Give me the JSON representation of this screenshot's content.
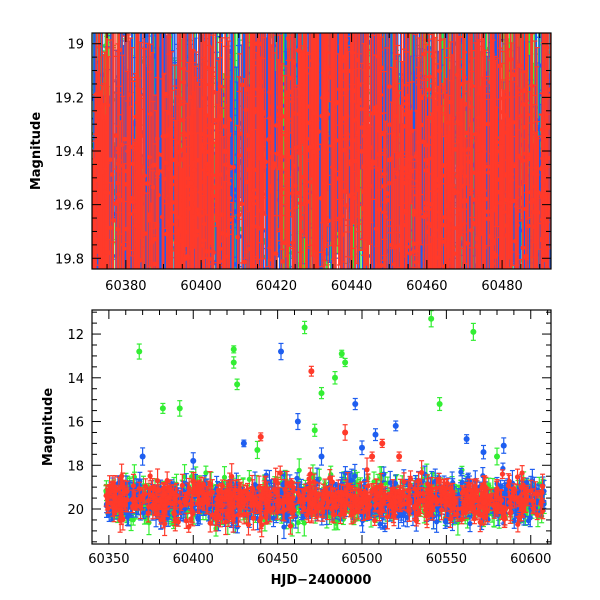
{
  "chart_data": [
    {
      "type": "scatter",
      "panel": "top",
      "xlabel": "",
      "ylabel": "Magnitude",
      "xlim": [
        60371,
        60493
      ],
      "ylim": [
        19.84,
        18.96
      ],
      "y_inverted": true,
      "x_tick_labels": [
        "60380",
        "60400",
        "60420",
        "60440",
        "60460",
        "60480"
      ],
      "y_tick_labels": [
        "19",
        "19.2",
        "19.4",
        "19.6",
        "19.8"
      ],
      "error_bars": true,
      "grid": false,
      "legend": "none",
      "series": [
        {
          "color": "#33ee33",
          "x": [
            60374,
            60381,
            60388,
            60394,
            60402,
            60408,
            60414,
            60421,
            60428,
            60436,
            60444,
            60452,
            60460,
            60468,
            60476,
            60484,
            60490
          ],
          "y": [
            19.45,
            19.6,
            19.55,
            19.5,
            19.65,
            19.55,
            19.5,
            19.35,
            19.4,
            19.3,
            19.35,
            19.55,
            19.6,
            19.5,
            19.45,
            19.55,
            19.5
          ]
        },
        {
          "color": "#1e5ef0",
          "x": [
            60375,
            60383,
            60391,
            60399,
            60407,
            60415,
            60423,
            60431,
            60439,
            60447,
            60455,
            60463,
            60471,
            60479,
            60487
          ],
          "y": [
            19.55,
            19.5,
            19.6,
            19.55,
            19.5,
            19.45,
            19.35,
            19.3,
            19.2,
            19.4,
            19.55,
            19.5,
            19.45,
            19.55,
            19.5
          ]
        },
        {
          "color": "#ff3a2a",
          "x": [
            60372,
            60378,
            60384,
            60390,
            60396,
            60404,
            60410,
            60418,
            60426,
            60434,
            60442,
            60450,
            60458,
            60466,
            60474,
            60482,
            60491
          ],
          "y": [
            19.6,
            19.55,
            19.6,
            19.5,
            19.55,
            19.5,
            19.55,
            19.4,
            19.35,
            19.25,
            19.3,
            19.45,
            19.55,
            19.5,
            19.55,
            19.5,
            19.55
          ]
        }
      ]
    },
    {
      "type": "scatter",
      "panel": "bottom",
      "xlabel": "HJD−2400000",
      "ylabel": "Magnitude",
      "xlim": [
        60340,
        60612
      ],
      "ylim": [
        21.6,
        10.9
      ],
      "y_inverted": true,
      "x_tick_labels": [
        "60350",
        "60400",
        "60450",
        "60500",
        "60550",
        "60600"
      ],
      "y_tick_labels": [
        "12",
        "14",
        "16",
        "18",
        "20"
      ],
      "error_bars": true,
      "grid": false,
      "legend": "none",
      "series": [
        {
          "color": "#33ee33",
          "x": [
            60368,
            60382,
            60392,
            60424,
            60424,
            60426,
            60438,
            60466,
            60472,
            60476,
            60484,
            60488,
            60490,
            60541,
            60546,
            60566,
            60580
          ],
          "y": [
            12.8,
            15.4,
            15.4,
            12.7,
            13.3,
            14.3,
            17.3,
            11.7,
            16.4,
            14.7,
            14.0,
            12.9,
            13.3,
            11.3,
            15.2,
            11.9,
            17.6
          ]
        },
        {
          "color": "#1e5ef0",
          "x": [
            60370,
            60400,
            60430,
            60452,
            60462,
            60476,
            60496,
            60500,
            60508,
            60520,
            60562,
            60572,
            60584
          ],
          "y": [
            17.6,
            17.8,
            17.0,
            12.8,
            16.0,
            17.6,
            15.2,
            17.2,
            16.6,
            16.2,
            16.8,
            17.4,
            17.1
          ]
        },
        {
          "color": "#ff3a2a",
          "x": [
            60440,
            60470,
            60490,
            60506,
            60512,
            60522
          ],
          "y": [
            16.7,
            13.7,
            16.5,
            17.6,
            17.0,
            17.6
          ]
        }
      ]
    }
  ]
}
